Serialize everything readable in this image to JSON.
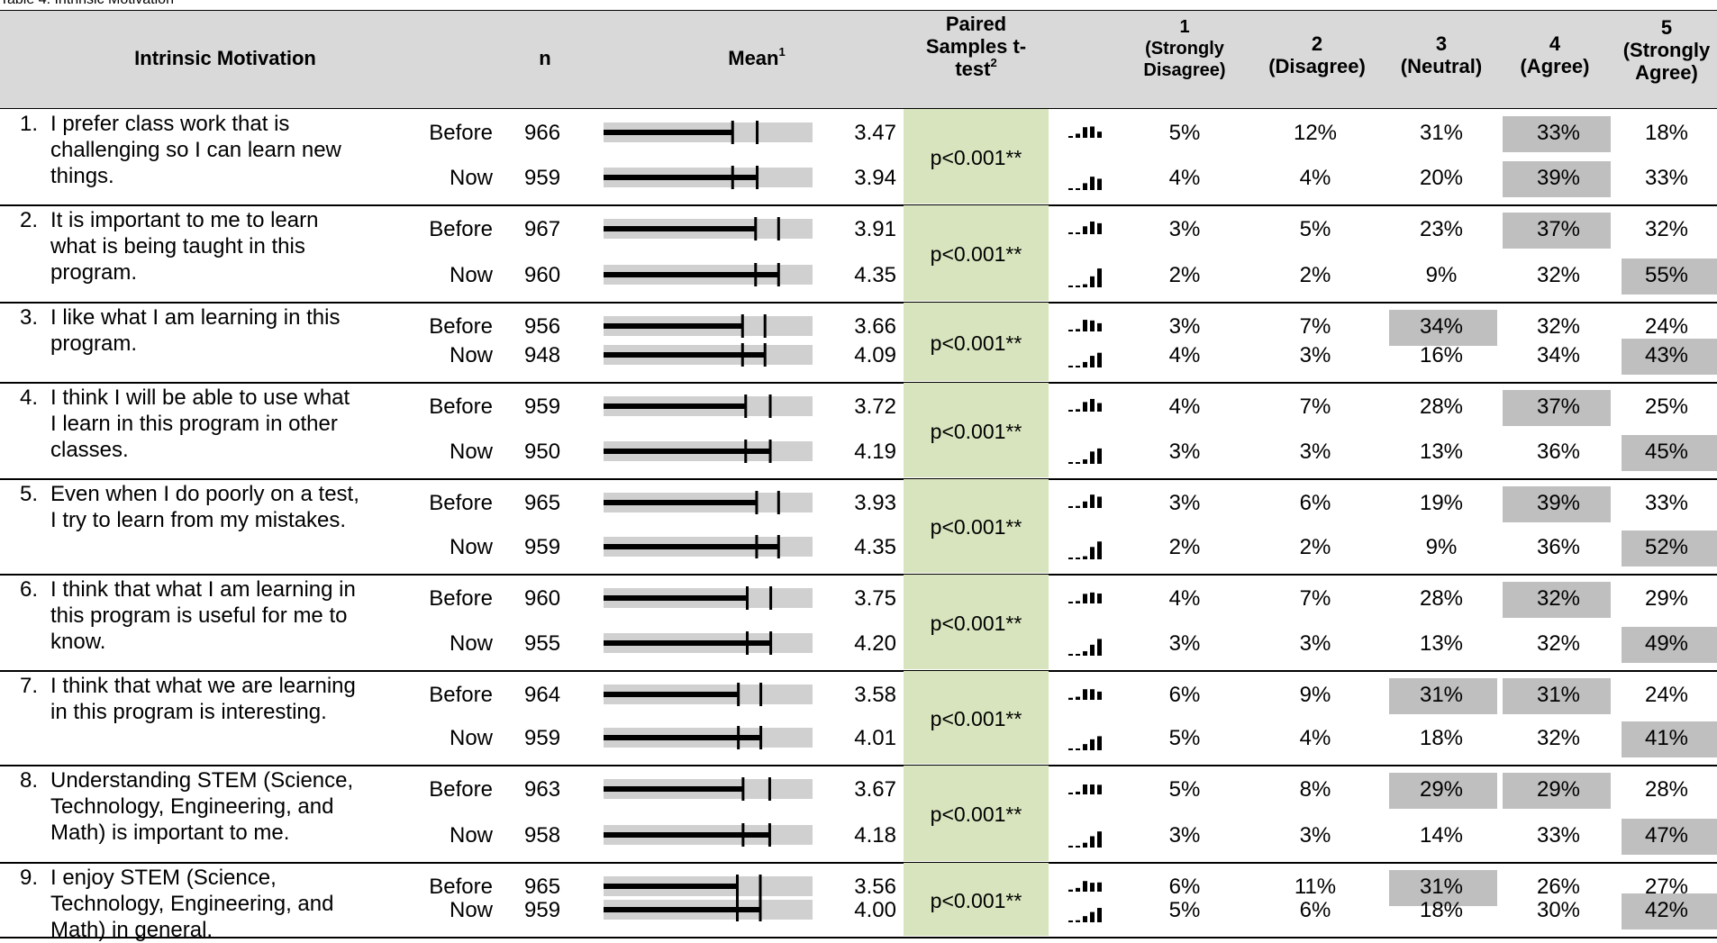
{
  "caption": "Table 4. Intrinsic Motivation",
  "headers": {
    "item": "Intrinsic Motivation",
    "n": "n",
    "mean": "Mean",
    "mean_note": "1",
    "ttest_line1": "Paired",
    "ttest_line2": "Samples t-",
    "ttest_line3": "test",
    "ttest_note": "2",
    "s1_num": "1",
    "s1_label_line1": "(Strongly",
    "s1_label_line2": "Disagree)",
    "s2_num": "2",
    "s2_label": "(Disagree)",
    "s3_num": "3",
    "s3_label": "(Neutral)",
    "s4_num": "4",
    "s4_label": "(Agree)",
    "s5_num": "5",
    "s5_label_line1": "(Strongly",
    "s5_label_line2": "Agree)"
  },
  "colors": {
    "header_bg": "#d9d9d9",
    "ttest_bg": "#d7e4bd",
    "highlight": "#bfbfbf",
    "bar_track": "#d0d0d0"
  },
  "mean_scale": {
    "min": 1,
    "max": 5
  },
  "items": [
    {
      "num": "1.",
      "line1": "I prefer class work that is",
      "line2": "challenging so I can learn new",
      "line3": "things.",
      "ttest": "p<0.001**",
      "before": {
        "label": "Before",
        "n": "966",
        "mean": "3.47",
        "mean_value": 3.47,
        "pct": [
          "5%",
          "12%",
          "31%",
          "33%",
          "18%"
        ],
        "mode": 3,
        "dist": [
          5,
          12,
          31,
          33,
          18
        ]
      },
      "now": {
        "label": "Now",
        "n": "959",
        "mean": "3.94",
        "mean_value": 3.94,
        "pct": [
          "4%",
          "4%",
          "20%",
          "39%",
          "33%"
        ],
        "mode": 3,
        "dist": [
          4,
          4,
          20,
          39,
          33
        ]
      }
    },
    {
      "num": "2.",
      "line1": "It is important to me to learn",
      "line2": "what is being taught in this",
      "line3": "program.",
      "ttest": "p<0.001**",
      "before": {
        "label": "Before",
        "n": "967",
        "mean": "3.91",
        "mean_value": 3.91,
        "pct": [
          "3%",
          "5%",
          "23%",
          "37%",
          "32%"
        ],
        "mode": 3,
        "dist": [
          3,
          5,
          23,
          37,
          32
        ]
      },
      "now": {
        "label": "Now",
        "n": "960",
        "mean": "4.35",
        "mean_value": 4.35,
        "pct": [
          "2%",
          "2%",
          "9%",
          "32%",
          "55%"
        ],
        "mode": 4,
        "dist": [
          2,
          2,
          9,
          32,
          55
        ]
      }
    },
    {
      "num": "3.",
      "line1": "I like what I am learning in this",
      "line2": "program.",
      "line3": "",
      "ttest": "p<0.001**",
      "before": {
        "label": "Before",
        "n": "956",
        "mean": "3.66",
        "mean_value": 3.66,
        "pct": [
          "3%",
          "7%",
          "34%",
          "32%",
          "24%"
        ],
        "mode": 2,
        "dist": [
          3,
          7,
          34,
          32,
          24
        ]
      },
      "now": {
        "label": "Now",
        "n": "948",
        "mean": "4.09",
        "mean_value": 4.09,
        "pct": [
          "4%",
          "3%",
          "16%",
          "34%",
          "43%"
        ],
        "mode": 4,
        "dist": [
          4,
          3,
          16,
          34,
          43
        ]
      }
    },
    {
      "num": "4.",
      "line1": "I think I will be able to use what",
      "line2": "I learn in this program in other",
      "line3": "classes.",
      "ttest": "p<0.001**",
      "before": {
        "label": "Before",
        "n": "959",
        "mean": "3.72",
        "mean_value": 3.72,
        "pct": [
          "4%",
          "7%",
          "28%",
          "37%",
          "25%"
        ],
        "mode": 3,
        "dist": [
          4,
          7,
          28,
          37,
          25
        ]
      },
      "now": {
        "label": "Now",
        "n": "950",
        "mean": "4.19",
        "mean_value": 4.19,
        "pct": [
          "3%",
          "3%",
          "13%",
          "36%",
          "45%"
        ],
        "mode": 4,
        "dist": [
          3,
          3,
          13,
          36,
          45
        ]
      }
    },
    {
      "num": "5.",
      "line1": "Even when I do poorly on a test,",
      "line2": "I try to learn from my mistakes.",
      "line3": "",
      "ttest": "p<0.001**",
      "before": {
        "label": "Before",
        "n": "965",
        "mean": "3.93",
        "mean_value": 3.93,
        "pct": [
          "3%",
          "6%",
          "19%",
          "39%",
          "33%"
        ],
        "mode": 3,
        "dist": [
          3,
          6,
          19,
          39,
          33
        ]
      },
      "now": {
        "label": "Now",
        "n": "959",
        "mean": "4.35",
        "mean_value": 4.35,
        "pct": [
          "2%",
          "2%",
          "9%",
          "36%",
          "52%"
        ],
        "mode": 4,
        "dist": [
          2,
          2,
          9,
          36,
          52
        ]
      }
    },
    {
      "num": "6.",
      "line1": "I think that what I am learning in",
      "line2": "this program is useful for me to",
      "line3": "know.",
      "ttest": "p<0.001**",
      "before": {
        "label": "Before",
        "n": "960",
        "mean": "3.75",
        "mean_value": 3.75,
        "pct": [
          "4%",
          "7%",
          "28%",
          "32%",
          "29%"
        ],
        "mode": 3,
        "dist": [
          4,
          7,
          28,
          32,
          29
        ]
      },
      "now": {
        "label": "Now",
        "n": "955",
        "mean": "4.20",
        "mean_value": 4.2,
        "pct": [
          "3%",
          "3%",
          "13%",
          "32%",
          "49%"
        ],
        "mode": 4,
        "dist": [
          3,
          3,
          13,
          32,
          49
        ]
      }
    },
    {
      "num": "7.",
      "line1": "I think that what we are learning",
      "line2": "in this program is interesting.",
      "line3": "",
      "ttest": "p<0.001**",
      "before": {
        "label": "Before",
        "n": "964",
        "mean": "3.58",
        "mean_value": 3.58,
        "pct": [
          "6%",
          "9%",
          "31%",
          "31%",
          "24%"
        ],
        "mode": [
          2,
          3
        ],
        "dist": [
          6,
          9,
          31,
          31,
          24
        ]
      },
      "now": {
        "label": "Now",
        "n": "959",
        "mean": "4.01",
        "mean_value": 4.01,
        "pct": [
          "5%",
          "4%",
          "18%",
          "32%",
          "41%"
        ],
        "mode": 4,
        "dist": [
          5,
          4,
          18,
          32,
          41
        ]
      }
    },
    {
      "num": "8.",
      "line1": "Understanding STEM (Science,",
      "line2": "Technology, Engineering, and",
      "line3": "Math) is important to me.",
      "ttest": "p<0.001**",
      "before": {
        "label": "Before",
        "n": "963",
        "mean": "3.67",
        "mean_value": 3.67,
        "pct": [
          "5%",
          "8%",
          "29%",
          "29%",
          "28%"
        ],
        "mode": [
          2,
          3
        ],
        "dist": [
          5,
          8,
          29,
          29,
          28
        ]
      },
      "now": {
        "label": "Now",
        "n": "958",
        "mean": "4.18",
        "mean_value": 4.18,
        "pct": [
          "3%",
          "3%",
          "14%",
          "33%",
          "47%"
        ],
        "mode": 4,
        "dist": [
          3,
          3,
          14,
          33,
          47
        ]
      }
    },
    {
      "num": "9.",
      "line1": "I enjoy STEM (Science,",
      "line2": "Technology, Engineering, and",
      "line3": "Math) in general.",
      "ttest": "p<0.001**",
      "before": {
        "label": "Before",
        "n": "965",
        "mean": "3.56",
        "mean_value": 3.56,
        "pct": [
          "6%",
          "11%",
          "31%",
          "26%",
          "27%"
        ],
        "mode": 2,
        "dist": [
          6,
          11,
          31,
          26,
          27
        ]
      },
      "now": {
        "label": "Now",
        "n": "959",
        "mean": "4.00",
        "mean_value": 4.0,
        "pct": [
          "5%",
          "6%",
          "18%",
          "30%",
          "42%"
        ],
        "mode": 4,
        "dist": [
          5,
          6,
          18,
          30,
          42
        ]
      }
    }
  ]
}
